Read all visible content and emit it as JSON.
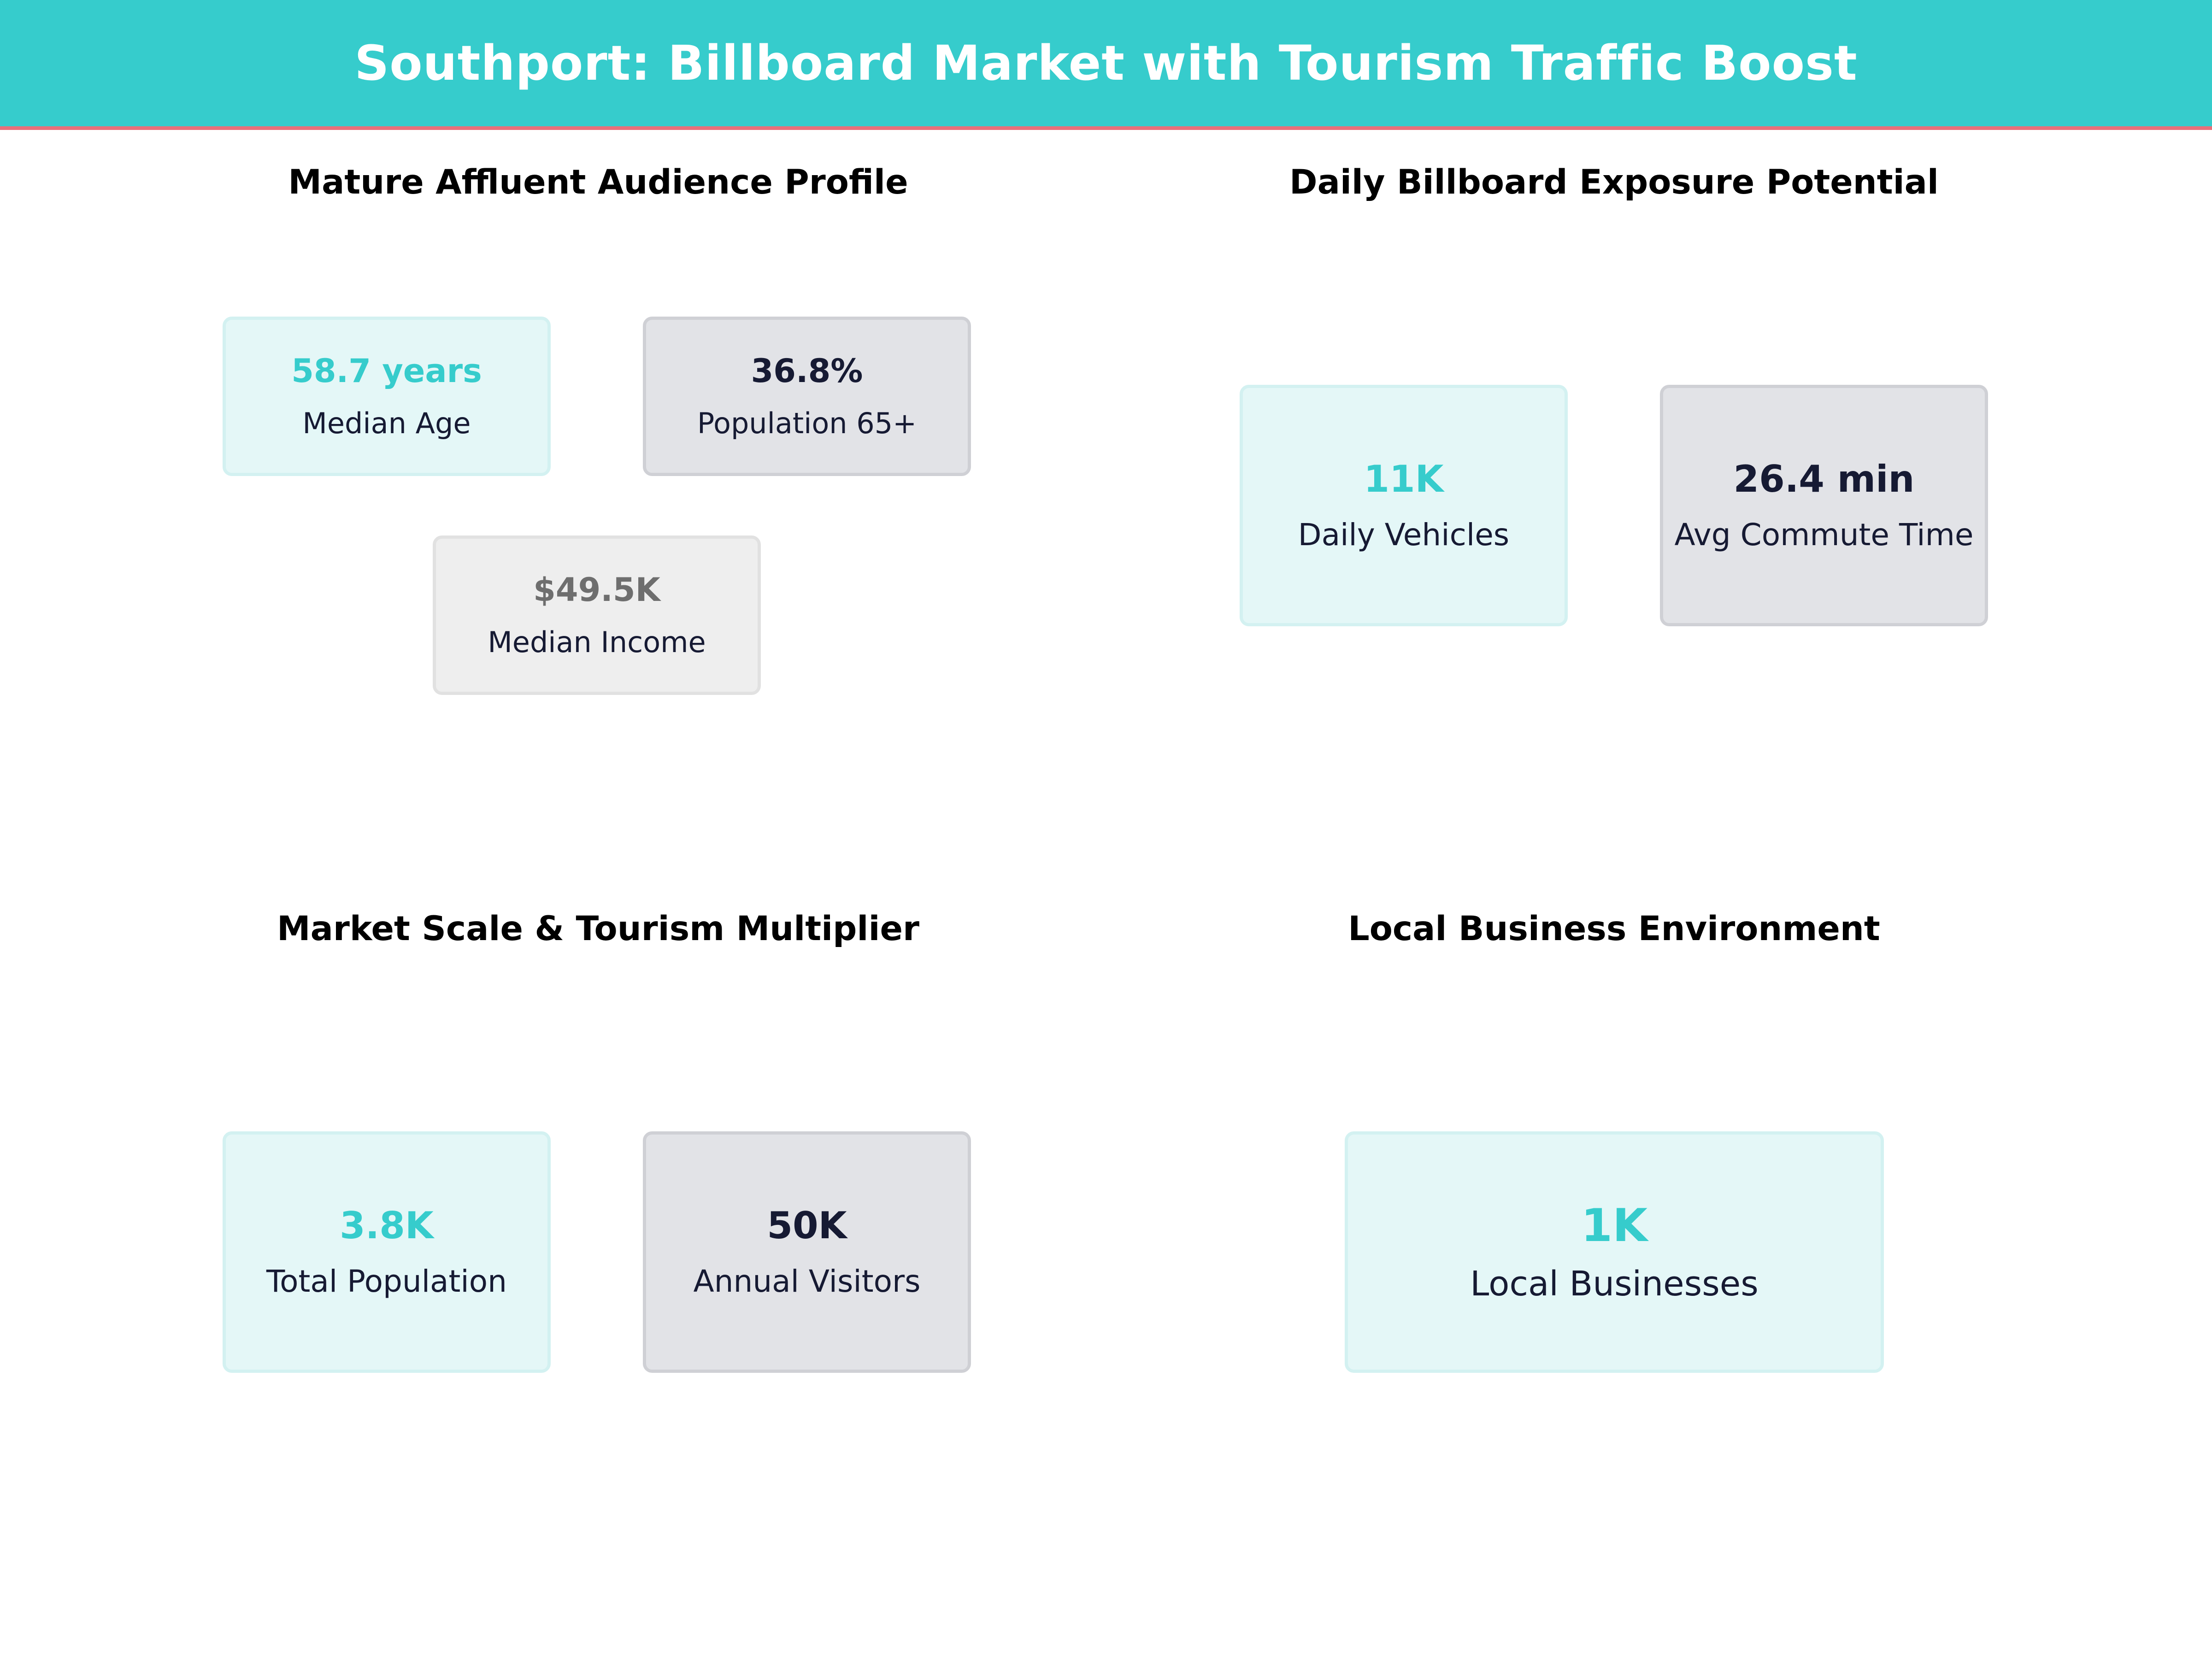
{
  "header": {
    "title": "Southport: Billboard Market with Tourism Traffic Boost"
  },
  "colors": {
    "header_bg": "#36cccc",
    "header_accent": "#e8707a",
    "teal": "#36cccc",
    "navy": "#161a33",
    "gray": "#6e6e6e"
  },
  "sections": {
    "audience": {
      "title": "Mature Affluent Audience Profile",
      "median_age": {
        "value": "58.7 years",
        "label": "Median Age"
      },
      "pop_65": {
        "value": "36.8%",
        "label": "Population 65+"
      },
      "median_income": {
        "value": "$49.5K",
        "label": "Median Income"
      }
    },
    "exposure": {
      "title": "Daily Billboard Exposure Potential",
      "daily_vehicles": {
        "value": "11K",
        "label": "Daily Vehicles"
      },
      "commute_time": {
        "value": "26.4 min",
        "label": "Avg Commute Time"
      }
    },
    "scale": {
      "title": "Market Scale & Tourism Multiplier",
      "total_population": {
        "value": "3.8K",
        "label": "Total Population"
      },
      "annual_visitors": {
        "value": "50K",
        "label": "Annual Visitors"
      }
    },
    "business": {
      "title": "Local Business Environment",
      "local_businesses": {
        "value": "1K",
        "label": "Local Businesses"
      }
    }
  }
}
